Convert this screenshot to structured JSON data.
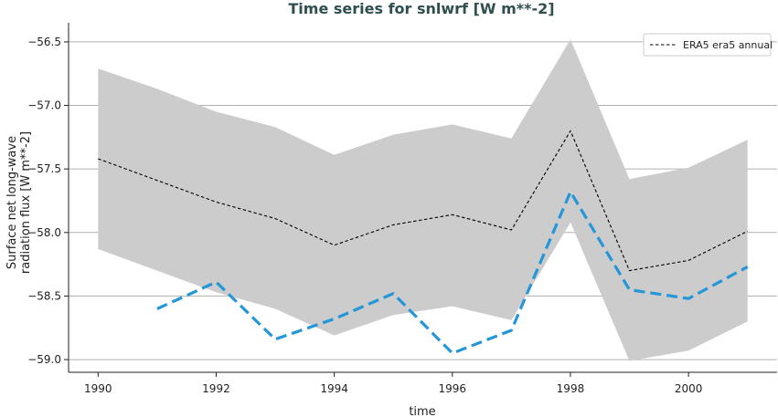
{
  "chart_data": {
    "type": "line",
    "title": "Time series for snlwrf [W m**-2]",
    "xlabel": "time",
    "ylabel_lines": [
      "Surface net long-wave",
      "radiation flux [W m**-2]"
    ],
    "xlim": [
      1989.5,
      2001.5
    ],
    "ylim": [
      -59.1,
      -56.35
    ],
    "x_ticks": [
      1990,
      1992,
      1994,
      1996,
      1998,
      2000
    ],
    "y_ticks": [
      -56.5,
      -57.0,
      -57.5,
      -58.0,
      -58.5,
      -59.0
    ],
    "x_tick_labels": [
      "1990",
      "1992",
      "1994",
      "1996",
      "1998",
      "2000"
    ],
    "y_tick_labels": [
      "−56.5",
      "−57.0",
      "−57.5",
      "−58.0",
      "−58.5",
      "−59.0"
    ],
    "grid": "horizontal",
    "legend_position": "top-right",
    "series": [
      {
        "name": "ERA5 era5 annual",
        "style": "dashed-thin",
        "color": "#000000",
        "x": [
          1990,
          1991,
          1992,
          1993,
          1994,
          1995,
          1996,
          1997,
          1998,
          1999,
          2000,
          2001
        ],
        "y": [
          -57.42,
          -57.59,
          -57.76,
          -57.89,
          -58.1,
          -57.94,
          -57.86,
          -57.98,
          -57.2,
          -58.3,
          -58.22,
          -57.99
        ]
      },
      {
        "style": "dashed-thick",
        "color": "#2596d8",
        "x": [
          1991,
          1992,
          1993,
          1994,
          1995,
          1996,
          1997,
          1998,
          1999,
          2000,
          2001
        ],
        "y": [
          -58.6,
          -58.39,
          -58.84,
          -58.68,
          -58.48,
          -58.95,
          -58.77,
          -57.68,
          -58.45,
          -58.52,
          -58.27
        ]
      }
    ],
    "band": {
      "color": "#cccccc",
      "x": [
        1990,
        1991,
        1992,
        1993,
        1994,
        1995,
        1996,
        1997,
        1998,
        1999,
        2000,
        2001
      ],
      "upper": [
        -56.71,
        -56.87,
        -57.05,
        -57.17,
        -57.39,
        -57.23,
        -57.15,
        -57.26,
        -56.48,
        -57.58,
        -57.49,
        -57.27
      ],
      "lower": [
        -58.13,
        -58.3,
        -58.47,
        -58.6,
        -58.81,
        -58.65,
        -58.58,
        -58.69,
        -57.92,
        -59.01,
        -58.93,
        -58.7
      ]
    }
  }
}
